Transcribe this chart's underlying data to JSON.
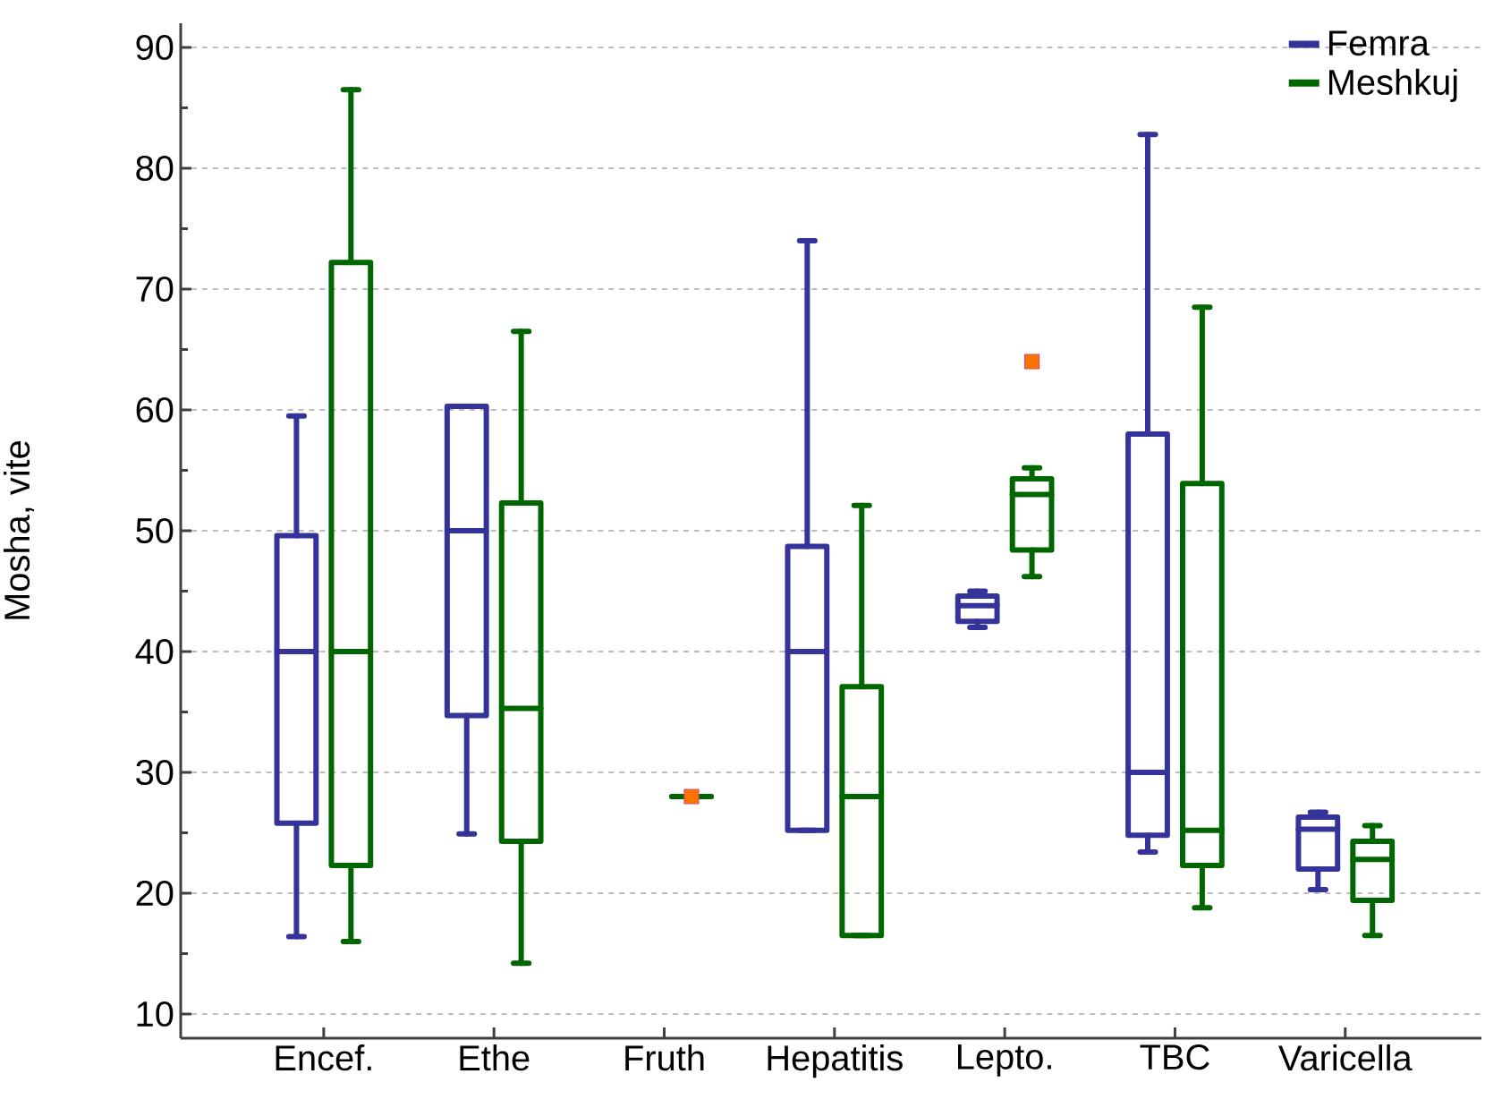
{
  "chart_data": {
    "type": "box",
    "ylabel": "Mosha, vite",
    "categories": [
      "Encef.",
      "Ethe",
      "Fruth",
      "Hepatitis",
      "Lepto.",
      "TBC",
      "Varicella"
    ],
    "ylim": [
      8,
      92
    ],
    "yticks": [
      10,
      20,
      30,
      40,
      50,
      60,
      70,
      80,
      90
    ],
    "grid": "y",
    "legend": "top right",
    "series": [
      {
        "name": "Femra",
        "color": "#333399",
        "boxes": [
          {
            "low": 16.4,
            "q1": 25.8,
            "median": 40,
            "q3": 49.6,
            "high": 59.5
          },
          {
            "low": 24.9,
            "q1": 34.7,
            "median": 50,
            "q3": 60.3,
            "high": 60.3
          },
          null,
          {
            "low": 25.2,
            "q1": 25.2,
            "median": 40,
            "q3": 48.7,
            "high": 74
          },
          {
            "low": 42,
            "q1": 42.5,
            "median": 43.8,
            "q3": 44.6,
            "high": 45
          },
          {
            "low": 23.4,
            "q1": 24.8,
            "median": 30,
            "q3": 58,
            "high": 82.8
          },
          {
            "low": 20.3,
            "q1": 22,
            "median": 25.3,
            "q3": 26.3,
            "high": 26.7
          }
        ]
      },
      {
        "name": "Meshkuj",
        "color": "#006600",
        "boxes": [
          {
            "low": 16,
            "q1": 22.3,
            "median": 40,
            "q3": 72.2,
            "high": 86.5
          },
          {
            "low": 14.2,
            "q1": 24.3,
            "median": 35.3,
            "q3": 52.3,
            "high": 66.5
          },
          {
            "low": 28,
            "q1": 28,
            "median": 28,
            "q3": 28,
            "high": 28,
            "outliers": [
              28
            ]
          },
          {
            "low": 16.5,
            "q1": 16.5,
            "median": 28,
            "q3": 37.1,
            "high": 52.1
          },
          {
            "low": 46.2,
            "q1": 48.4,
            "median": 53,
            "q3": 54.3,
            "high": 55.2,
            "outliers": [
              64
            ]
          },
          {
            "low": 18.8,
            "q1": 22.3,
            "median": 25.2,
            "q3": 53.9,
            "high": 68.5
          },
          {
            "low": 16.5,
            "q1": 19.4,
            "median": 22.8,
            "q3": 24.3,
            "high": 25.6
          }
        ]
      }
    ]
  }
}
